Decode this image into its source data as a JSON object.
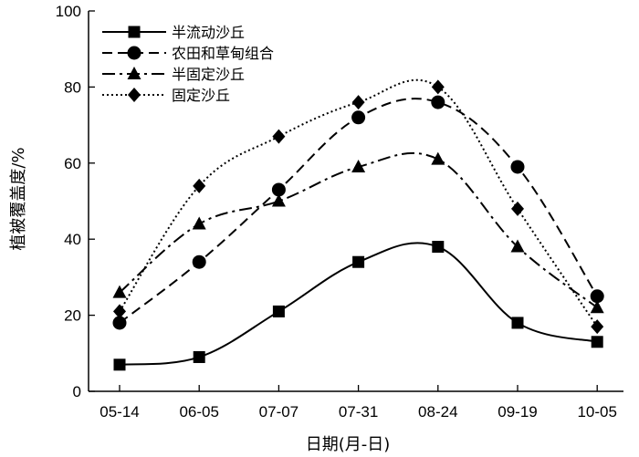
{
  "chart_data": {
    "type": "line",
    "title": "",
    "xlabel": "日期(月-日)",
    "ylabel": "植被覆盖度/%",
    "categories": [
      "05-14",
      "06-05",
      "07-07",
      "07-31",
      "08-24",
      "09-19",
      "10-05"
    ],
    "ylim": [
      0,
      100
    ],
    "yticks": [
      0,
      20,
      40,
      60,
      80,
      100
    ],
    "grid": false,
    "legend_position": "top-left",
    "series": [
      {
        "name": "半流动沙丘",
        "values": [
          7,
          9,
          21,
          34,
          38,
          18,
          13
        ],
        "marker": "square",
        "dash": "solid",
        "color": "#000000"
      },
      {
        "name": "农田和草甸组合",
        "values": [
          18,
          34,
          53,
          72,
          76,
          59,
          25
        ],
        "marker": "circle",
        "dash": "dashed",
        "color": "#000000"
      },
      {
        "name": "半固定沙丘",
        "values": [
          26,
          44,
          50,
          59,
          61,
          38,
          22
        ],
        "marker": "triangle",
        "dash": "dash-dot",
        "color": "#000000"
      },
      {
        "name": "固定沙丘",
        "values": [
          21,
          54,
          67,
          76,
          80,
          48,
          17
        ],
        "marker": "diamond",
        "dash": "dotted",
        "color": "#000000"
      }
    ]
  }
}
